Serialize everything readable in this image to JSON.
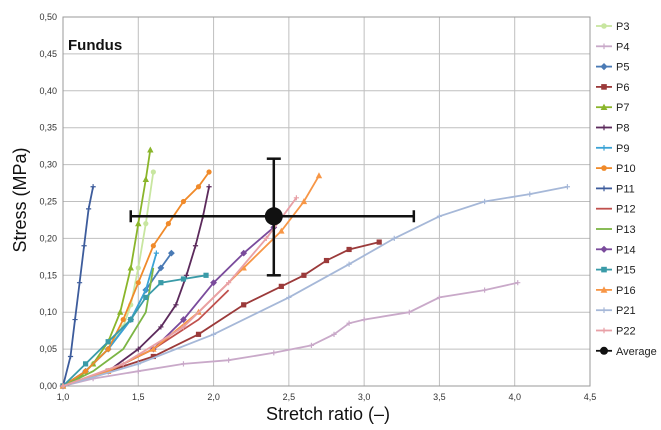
{
  "chart_data": {
    "type": "line",
    "panel_label": "Fundus",
    "xlabel": "Stretch ratio (–)",
    "ylabel": "Stress (MPa)",
    "xlim": [
      1.0,
      4.5
    ],
    "ylim": [
      0.0,
      0.5
    ],
    "x_ticks": [
      "1,0",
      "1,5",
      "2,0",
      "2,5",
      "3,0",
      "3,5",
      "4,0",
      "4,5"
    ],
    "y_ticks": [
      "0,00",
      "0,05",
      "0,10",
      "0,15",
      "0,20",
      "0,25",
      "0,30",
      "0,35",
      "0,40",
      "0,45",
      "0,50"
    ],
    "grid": true,
    "legend_position": "right",
    "series": [
      {
        "name": "P3",
        "color": "#c8e6a0",
        "marker": "circle",
        "x": [
          1.0,
          1.1,
          1.2,
          1.3,
          1.4,
          1.45,
          1.5,
          1.55,
          1.6
        ],
        "y": [
          0.0,
          0.01,
          0.03,
          0.05,
          0.08,
          0.11,
          0.16,
          0.22,
          0.29
        ]
      },
      {
        "name": "P4",
        "color": "#c9a9c9",
        "marker": "cross",
        "x": [
          1.0,
          1.2,
          1.5,
          1.8,
          2.1,
          2.4,
          2.65,
          2.8,
          2.9,
          3.0,
          3.3,
          3.5,
          3.8,
          4.02
        ],
        "y": [
          0.0,
          0.01,
          0.02,
          0.03,
          0.035,
          0.045,
          0.055,
          0.07,
          0.085,
          0.09,
          0.1,
          0.12,
          0.13,
          0.14
        ]
      },
      {
        "name": "P5",
        "color": "#4a7ab5",
        "marker": "diamond",
        "x": [
          1.0,
          1.15,
          1.3,
          1.45,
          1.55,
          1.65,
          1.72
        ],
        "y": [
          0.0,
          0.02,
          0.05,
          0.09,
          0.13,
          0.16,
          0.18
        ]
      },
      {
        "name": "P6",
        "color": "#9b3a3a",
        "marker": "square",
        "x": [
          1.0,
          1.3,
          1.6,
          1.9,
          2.2,
          2.45,
          2.6,
          2.75,
          2.9,
          3.1
        ],
        "y": [
          0.0,
          0.02,
          0.04,
          0.07,
          0.11,
          0.135,
          0.15,
          0.17,
          0.185,
          0.195
        ]
      },
      {
        "name": "P7",
        "color": "#8ab52a",
        "marker": "triangle",
        "x": [
          1.0,
          1.1,
          1.2,
          1.3,
          1.38,
          1.45,
          1.5,
          1.55,
          1.58
        ],
        "y": [
          0.0,
          0.01,
          0.03,
          0.06,
          0.1,
          0.16,
          0.22,
          0.28,
          0.32
        ]
      },
      {
        "name": "P8",
        "color": "#5c2a5c",
        "marker": "cross",
        "x": [
          1.0,
          1.3,
          1.5,
          1.65,
          1.75,
          1.82,
          1.88,
          1.93,
          1.97
        ],
        "y": [
          0.0,
          0.02,
          0.05,
          0.08,
          0.11,
          0.15,
          0.19,
          0.23,
          0.27
        ]
      },
      {
        "name": "P9",
        "color": "#3aa3d6",
        "marker": "cross",
        "x": [
          1.0,
          1.15,
          1.3,
          1.45,
          1.55,
          1.62
        ],
        "y": [
          0.0,
          0.02,
          0.05,
          0.09,
          0.13,
          0.18
        ]
      },
      {
        "name": "P10",
        "color": "#f08a2a",
        "marker": "circle",
        "x": [
          1.0,
          1.15,
          1.3,
          1.4,
          1.5,
          1.6,
          1.7,
          1.8,
          1.9,
          1.97
        ],
        "y": [
          0.0,
          0.02,
          0.05,
          0.09,
          0.14,
          0.19,
          0.22,
          0.25,
          0.27,
          0.29
        ]
      },
      {
        "name": "P11",
        "color": "#3d5c9c",
        "marker": "cross",
        "x": [
          1.0,
          1.05,
          1.08,
          1.11,
          1.14,
          1.17,
          1.2
        ],
        "y": [
          0.0,
          0.04,
          0.09,
          0.14,
          0.19,
          0.24,
          0.27
        ]
      },
      {
        "name": "P12",
        "color": "#c0504d",
        "marker": "line",
        "x": [
          1.0,
          1.3,
          1.6,
          1.9,
          2.1
        ],
        "y": [
          0.0,
          0.02,
          0.05,
          0.09,
          0.13
        ]
      },
      {
        "name": "P13",
        "color": "#7cb544",
        "marker": "line",
        "x": [
          1.0,
          1.2,
          1.4,
          1.55,
          1.6
        ],
        "y": [
          0.0,
          0.02,
          0.05,
          0.1,
          0.16
        ]
      },
      {
        "name": "P14",
        "color": "#7a4b9c",
        "marker": "diamond",
        "x": [
          1.0,
          1.3,
          1.6,
          1.8,
          2.0,
          2.2,
          2.4
        ],
        "y": [
          0.0,
          0.02,
          0.05,
          0.09,
          0.14,
          0.18,
          0.215
        ]
      },
      {
        "name": "P15",
        "color": "#3a9ba8",
        "marker": "square",
        "x": [
          1.0,
          1.15,
          1.3,
          1.45,
          1.55,
          1.65,
          1.8,
          1.95
        ],
        "y": [
          0.0,
          0.03,
          0.06,
          0.09,
          0.12,
          0.14,
          0.145,
          0.15
        ]
      },
      {
        "name": "P16",
        "color": "#f79646",
        "marker": "triangle",
        "x": [
          1.0,
          1.3,
          1.6,
          1.9,
          2.2,
          2.45,
          2.6,
          2.7
        ],
        "y": [
          0.0,
          0.02,
          0.05,
          0.1,
          0.16,
          0.21,
          0.25,
          0.285
        ]
      },
      {
        "name": "P21",
        "color": "#a6b8d8",
        "marker": "cross",
        "x": [
          1.0,
          1.5,
          2.0,
          2.5,
          2.9,
          3.2,
          3.5,
          3.8,
          4.1,
          4.35
        ],
        "y": [
          0.0,
          0.03,
          0.07,
          0.12,
          0.165,
          0.2,
          0.23,
          0.25,
          0.26,
          0.27
        ]
      },
      {
        "name": "P22",
        "color": "#e8a0a6",
        "marker": "cross",
        "x": [
          1.0,
          1.4,
          1.8,
          2.1,
          2.35,
          2.55
        ],
        "y": [
          0.0,
          0.03,
          0.08,
          0.14,
          0.2,
          0.255
        ]
      }
    ],
    "average": {
      "name": "Average",
      "x": 2.4,
      "y": 0.23,
      "x_error": [
        1.45,
        3.33
      ],
      "y_error": [
        0.15,
        0.308
      ]
    }
  }
}
